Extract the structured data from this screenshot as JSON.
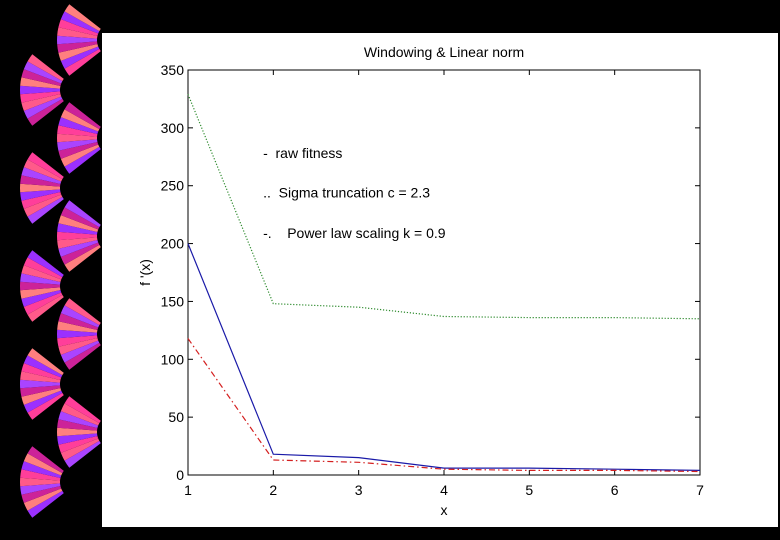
{
  "chart_data": {
    "type": "line",
    "title": "Windowing & Linear norm",
    "xlabel": "x",
    "ylabel": "f '(x)",
    "xlim": [
      1,
      7
    ],
    "ylim": [
      0,
      350
    ],
    "x_ticks": [
      1,
      2,
      3,
      4,
      5,
      6,
      7
    ],
    "y_ticks": [
      0,
      50,
      100,
      150,
      200,
      250,
      300,
      350
    ],
    "grid": false,
    "x": [
      1,
      2,
      3,
      4,
      5,
      6,
      7
    ],
    "series": [
      {
        "values": [
          200,
          18,
          15,
          6,
          6,
          5,
          4
        ],
        "color": "#1a1aa8",
        "style": "solid"
      },
      {
        "values": [
          329,
          148,
          145,
          137,
          136,
          136,
          135
        ],
        "color": "#2e8b2e",
        "style": "dotted"
      },
      {
        "values": [
          118,
          13,
          11,
          5,
          4,
          4,
          3
        ],
        "color": "#d42020",
        "style": "dashdot"
      }
    ],
    "annotations": [
      {
        "text": "-  raw fitness",
        "x": 1.88,
        "y": 274
      },
      {
        "text": "..  Sigma truncation c = 2.3",
        "x": 1.88,
        "y": 240
      },
      {
        "text": "-.    Power law scaling k = 0.9",
        "x": 1.88,
        "y": 205
      }
    ]
  },
  "decoration": {
    "fan_colors": [
      "#ff3e9a",
      "#9b30ff",
      "#ff7f7f",
      "#cc2299",
      "#aa44ff",
      "#ff5a8a"
    ]
  }
}
